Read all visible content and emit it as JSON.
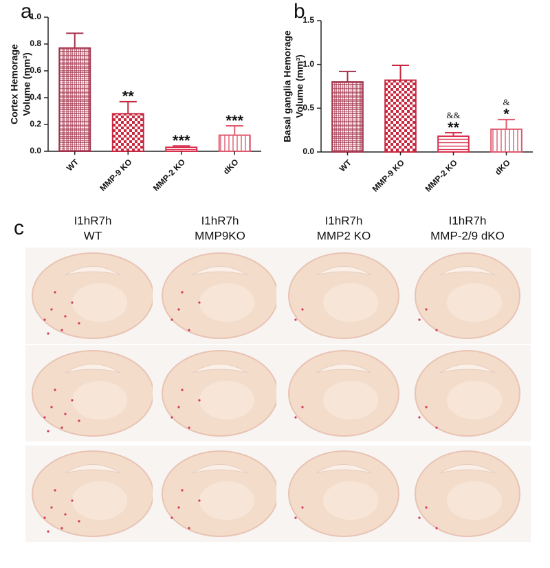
{
  "chart_data": [
    {
      "type": "bar",
      "panel": "a",
      "ylabel": [
        "Cortex Hemorage",
        "Volume (mm³)"
      ],
      "categories": [
        "WT",
        "MMP-9 KO",
        "MMP-2 KO",
        "dKO"
      ],
      "values": [
        0.77,
        0.28,
        0.03,
        0.12
      ],
      "errors": [
        0.11,
        0.09,
        0.01,
        0.07
      ],
      "annotations": [
        null,
        "**",
        "***",
        "***"
      ],
      "colors": [
        "#a3324a",
        "#c8283f",
        "#d9304e",
        "#e05a6e"
      ],
      "ylim": [
        0,
        1.0
      ],
      "yticks": [
        {
          "value": 0,
          "label": "0.0"
        },
        0.2,
        0.4,
        0.6,
        0.8,
        {
          "value": 1.0,
          "label": "1.0"
        }
      ]
    },
    {
      "type": "bar",
      "panel": "b",
      "ylabel": [
        "Basal ganglia  Hemorage",
        "Volume (mm³)"
      ],
      "categories": [
        "WT",
        "MMP-9 KO",
        "MMP-2 KO",
        "dKO"
      ],
      "values": [
        0.8,
        0.82,
        0.18,
        0.26
      ],
      "errors": [
        0.12,
        0.17,
        0.04,
        0.11
      ],
      "annotations": [
        null,
        null,
        "**",
        "*"
      ],
      "annotations_top": [
        null,
        null,
        "&&",
        "&"
      ],
      "colors": [
        "#a3324a",
        "#c8283f",
        "#d9304e",
        "#e05a6e"
      ],
      "ylim": [
        0,
        1.5
      ],
      "yticks": [
        {
          "value": 0,
          "label": "0.0"
        },
        {
          "value": 0.5,
          "label": "0.5"
        },
        {
          "value": 1.0,
          "label": "1.0"
        },
        {
          "value": 1.5,
          "label": "1.5"
        }
      ]
    }
  ],
  "panel_c": {
    "label": "c",
    "columns": [
      [
        "I1hR7h",
        "WT"
      ],
      [
        "I1hR7h",
        "MMP9KO"
      ],
      [
        "I1hR7h",
        "MMP2 KO"
      ],
      [
        "I1hR7h",
        "MMP-2/9 dKO"
      ]
    ]
  }
}
